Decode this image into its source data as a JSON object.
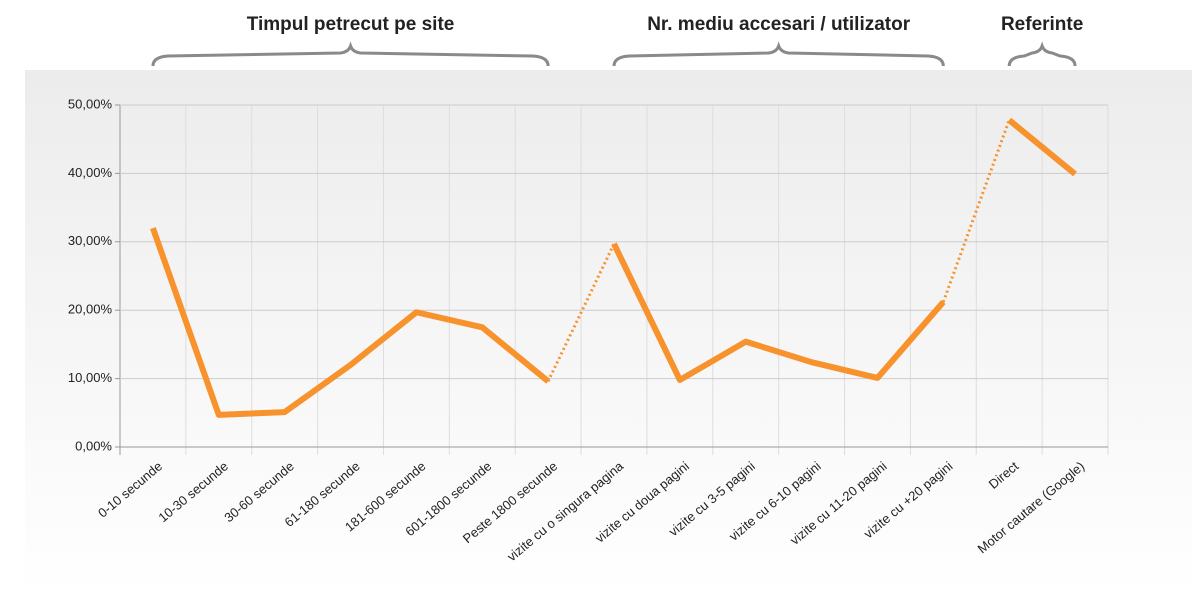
{
  "chart_data": {
    "type": "line",
    "color": "#f7922d",
    "grid": true,
    "ylim": [
      0,
      50
    ],
    "yticks": [
      {
        "value": 0,
        "label": "0,00%"
      },
      {
        "value": 10,
        "label": "10,00%"
      },
      {
        "value": 20,
        "label": "20,00%"
      },
      {
        "value": 30,
        "label": "30,00%"
      },
      {
        "value": 40,
        "label": "40,00%"
      },
      {
        "value": 50,
        "label": "50,00%"
      }
    ],
    "groups": [
      {
        "label": "Timpul petrecut pe site",
        "categories": [
          "0-10 secunde",
          "10-30 secunde",
          "30-60 secunde",
          "61-180 secunde",
          "181-600 secunde",
          "601-1800 secunde",
          "Peste 1800 secunde"
        ],
        "values": [
          32.0,
          4.7,
          5.1,
          12.0,
          19.7,
          17.5,
          9.6
        ]
      },
      {
        "label": "Nr. mediu accesari / utilizator",
        "categories": [
          "vizite cu o singura pagina",
          "vizite cu doua pagini",
          "vizite cu 3-5 pagini",
          "vizite cu 6-10 pagini",
          "vizite cu 11-20 pagini",
          "vizite cu +20 pagini"
        ],
        "values": [
          29.7,
          9.8,
          15.4,
          12.4,
          10.1,
          21.2
        ]
      },
      {
        "label": "Referinte",
        "categories": [
          "Direct",
          "Motor cautare (Google)"
        ],
        "values": [
          47.8,
          39.9
        ]
      }
    ]
  }
}
